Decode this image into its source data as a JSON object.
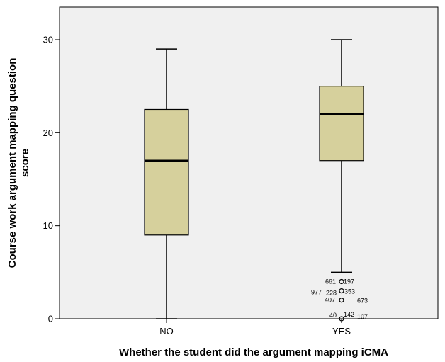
{
  "chart_data": {
    "type": "boxplot",
    "xlabel": "Whether the student did the argument mapping iCMA",
    "ylabel_lines": [
      "Course work argument mapping question",
      "score"
    ],
    "ylim": [
      0,
      33.5
    ],
    "yticks": [
      0,
      10,
      20,
      30
    ],
    "grid": false,
    "colors": {
      "plot_bg": "#f0f0f0",
      "box_fill": "#d6d09c",
      "stroke": "#000000"
    },
    "categories": [
      "NO",
      "YES"
    ],
    "boxes": [
      {
        "category": "NO",
        "whisker_low": 0,
        "q1": 9,
        "median": 17,
        "q3": 22.5,
        "whisker_high": 29,
        "outliers": []
      },
      {
        "category": "YES",
        "whisker_low": 5,
        "q1": 17,
        "median": 22,
        "q3": 25,
        "whisker_high": 30,
        "outliers": [
          {
            "value": 4,
            "labels": [
              "661",
              "197"
            ]
          },
          {
            "value": 3,
            "labels": [
              "977",
              "228",
              "353"
            ]
          },
          {
            "value": 2,
            "labels": [
              "407",
              "673"
            ]
          },
          {
            "value": 0,
            "labels": [
              "40",
              "142",
              "107"
            ]
          }
        ]
      }
    ]
  }
}
